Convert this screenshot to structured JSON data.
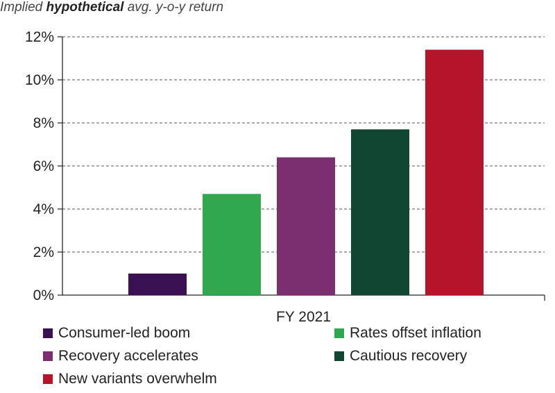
{
  "title": {
    "prefix": "Implied ",
    "emphasis": "hypothetical",
    "suffix": " avg. y-o-y return"
  },
  "chart_data": {
    "type": "bar",
    "categories": [
      "FY 2021"
    ],
    "series": [
      {
        "name": "Consumer-led boom",
        "values": [
          1.0
        ],
        "color": "#3a1153"
      },
      {
        "name": "Rates offset inflation",
        "values": [
          4.7
        ],
        "color": "#2fa84f"
      },
      {
        "name": "Recovery accelerates",
        "values": [
          6.4
        ],
        "color": "#7b2f70"
      },
      {
        "name": "Cautious recovery",
        "values": [
          7.7
        ],
        "color": "#114632"
      },
      {
        "name": "New variants overwhelm",
        "values": [
          11.4
        ],
        "color": "#b5142b"
      }
    ],
    "ylim": [
      0,
      12
    ],
    "yticks": [
      "0%",
      "2%",
      "4%",
      "6%",
      "8%",
      "10%",
      "12%"
    ],
    "grid": "dashed horizontal",
    "legend": "bottom"
  }
}
